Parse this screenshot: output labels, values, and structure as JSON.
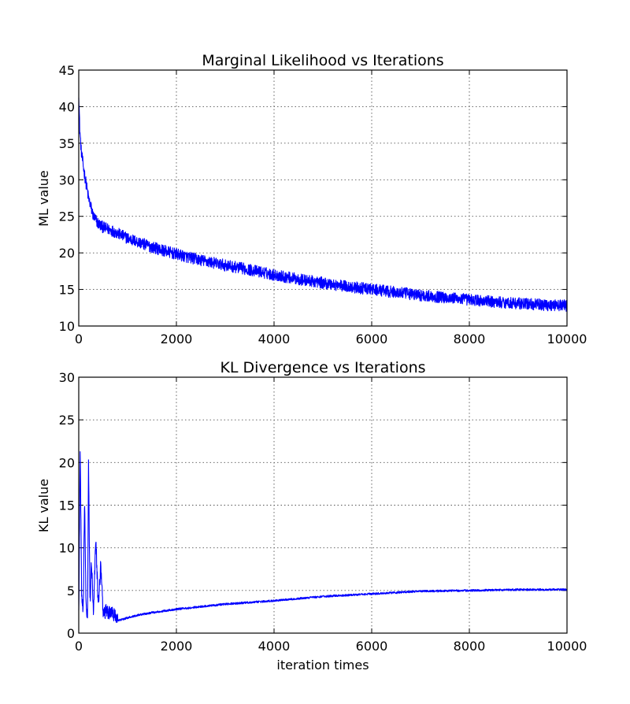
{
  "chart_data": [
    {
      "type": "line",
      "title": "Marginal Likelihood vs Iterations",
      "xlabel": "",
      "ylabel": "ML value",
      "xlim": [
        0,
        10000
      ],
      "ylim": [
        10,
        45
      ],
      "xticks": [
        0,
        2000,
        4000,
        6000,
        8000,
        10000
      ],
      "yticks": [
        10,
        15,
        20,
        25,
        30,
        35,
        40,
        45
      ],
      "grid": true,
      "color": "#0000ff",
      "series": [
        {
          "x": [
            0,
            20,
            50,
            100,
            150,
            200,
            300,
            400,
            500,
            700,
            1000,
            1500,
            2000,
            2500,
            3000,
            3500,
            4000,
            4500,
            5000,
            5500,
            6000,
            6500,
            7000,
            7500,
            8000,
            8500,
            9000,
            9500,
            10000
          ],
          "values": [
            42,
            37,
            34,
            31.5,
            29.5,
            27.5,
            25,
            24,
            23.5,
            23,
            22,
            20.8,
            19.8,
            19,
            18.3,
            17.7,
            17,
            16.4,
            15.9,
            15.4,
            15,
            14.6,
            14.2,
            13.9,
            13.6,
            13.3,
            13.1,
            12.9,
            12.8
          ],
          "noise": 0.8
        }
      ]
    },
    {
      "type": "line",
      "title": "KL Divergence vs Iterations",
      "xlabel": "iteration times",
      "ylabel": "KL value",
      "xlim": [
        0,
        10000
      ],
      "ylim": [
        0,
        30
      ],
      "xticks": [
        0,
        2000,
        4000,
        6000,
        8000,
        10000
      ],
      "yticks": [
        0,
        5,
        10,
        15,
        20,
        25,
        30
      ],
      "grid": true,
      "color": "#0000ff",
      "series": [
        {
          "x": [
            0,
            30,
            60,
            90,
            120,
            150,
            180,
            200,
            230,
            260,
            300,
            350,
            400,
            450,
            500,
            600,
            700,
            780,
            900,
            1000,
            1200,
            1500,
            2000,
            2500,
            3000,
            3500,
            4000,
            5000,
            6000,
            7000,
            8000,
            9000,
            10000
          ],
          "values": [
            2,
            22,
            4,
            2.5,
            16,
            3,
            2,
            20.3,
            3,
            8.8,
            2.5,
            11.3,
            3,
            8,
            2.5,
            2.5,
            2.3,
            1.5,
            1.6,
            1.8,
            2.1,
            2.4,
            2.8,
            3.1,
            3.4,
            3.6,
            3.8,
            4.3,
            4.6,
            4.9,
            5,
            5.1,
            5.1
          ],
          "noise": 0.12
        }
      ]
    }
  ]
}
